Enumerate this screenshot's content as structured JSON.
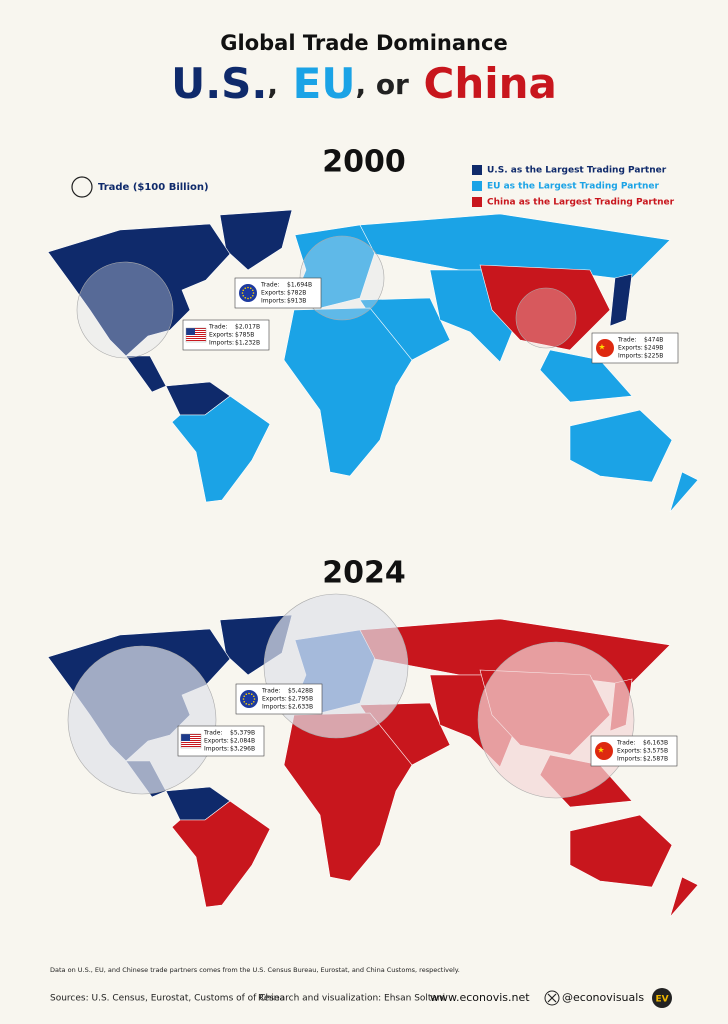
{
  "header": {
    "title": "Global Trade Dominance",
    "subtitle": {
      "us": "U.S.",
      "sep1": ",",
      "eu": "EU",
      "sep2": ", or",
      "china": "China"
    }
  },
  "legend": {
    "bubble": "Trade ($100 Billion)",
    "items": [
      {
        "label": "U.S. as the Largest Trading Partner",
        "color": "#0f2a6b"
      },
      {
        "label": "EU as the Largest Trading Partner",
        "color": "#1ba3e6"
      },
      {
        "label": "China as the Largest Trading Partner",
        "color": "#c8161d"
      }
    ]
  },
  "maps": [
    {
      "year": "2000",
      "boxes": [
        {
          "flag": "us",
          "rows": [
            [
              "Trade:",
              "$2,017B"
            ],
            [
              "Exports:",
              "$785B"
            ],
            [
              "Imports:",
              "$1,232B"
            ]
          ]
        },
        {
          "flag": "eu",
          "rows": [
            [
              "Trade:",
              "$1,694B"
            ],
            [
              "Exports:",
              "$782B"
            ],
            [
              "Imports:",
              "$913B"
            ]
          ]
        },
        {
          "flag": "cn",
          "rows": [
            [
              "Trade:",
              "$474B"
            ],
            [
              "Exports:",
              "$249B"
            ],
            [
              "Imports:",
              "$225B"
            ]
          ]
        }
      ]
    },
    {
      "year": "2024",
      "boxes": [
        {
          "flag": "us",
          "rows": [
            [
              "Trade:",
              "$5,379B"
            ],
            [
              "Exports:",
              "$2,084B"
            ],
            [
              "Imports:",
              "$3,296B"
            ]
          ]
        },
        {
          "flag": "eu",
          "rows": [
            [
              "Trade:",
              "$5,428B"
            ],
            [
              "Exports:",
              "$2,795B"
            ],
            [
              "Imports:",
              "$2,633B"
            ]
          ]
        },
        {
          "flag": "cn",
          "rows": [
            [
              "Trade:",
              "$6,163B"
            ],
            [
              "Exports:",
              "$3,575B"
            ],
            [
              "Imports:",
              "$2,587B"
            ]
          ]
        }
      ]
    }
  ],
  "footer": {
    "note": "Data on U.S., EU, and Chinese trade partners comes from the U.S. Census Bureau, Eurostat, and China Customs, respectively.",
    "sources": "Sources: U.S. Census, Eurostat, Customs of of China",
    "credit": "Research and visualization: Ehsan Soltani",
    "site": "www.econovis.net",
    "handle": "@econovisuals",
    "logo": "EV"
  }
}
